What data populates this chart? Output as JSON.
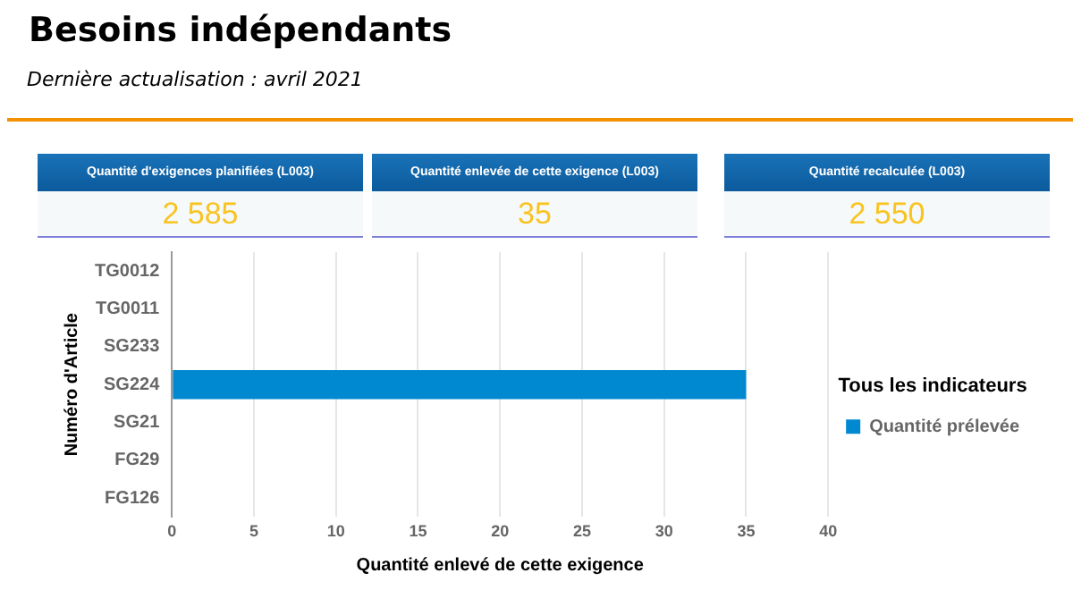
{
  "chart_data": [
    {
      "type": "other",
      "title": "Besoins indépendants",
      "subtitle": "Dernière actualisation : avril 2021",
      "annotations": [
        "Quantité d'exigences planifiées (L003)",
        "2 585",
        "Quantité enlevée de cette exigence (L003)",
        "35",
        "Quantité recalculée (L003)",
        "2 550"
      ]
    },
    {
      "type": "bar",
      "orientation": "horizontal",
      "categories": [
        "TG0012",
        "TG0011",
        "SG233",
        "SG224",
        "SG21",
        "FG29",
        "FG126"
      ],
      "series": [
        {
          "name": "Quantité prélevée",
          "color": "#0088d1",
          "values": [
            null,
            null,
            null,
            35,
            null,
            null,
            null
          ]
        }
      ],
      "xlabel": "Quantité enlevé de cette exigence",
      "ylabel": "Numéro d'Article",
      "legend_title": "Tous les indicateurs",
      "legend": "right",
      "xlim": [
        0,
        40
      ],
      "xticks": [
        0,
        5,
        10,
        15,
        20,
        25,
        30,
        35,
        40
      ],
      "grid": "x"
    }
  ]
}
